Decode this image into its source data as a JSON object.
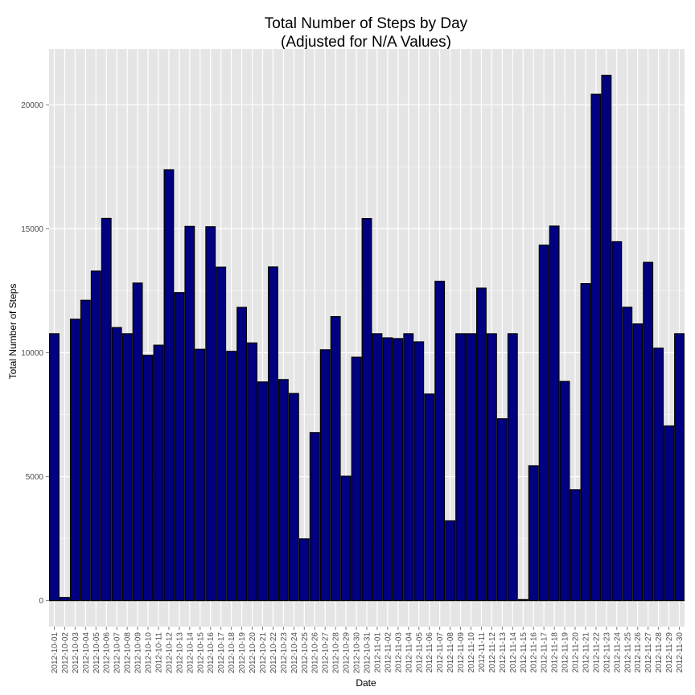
{
  "chart_data": {
    "type": "bar",
    "title": [
      "Total Number of Steps by Day",
      "(Adjusted for N/A Values)"
    ],
    "xlabel": "Date",
    "ylabel": "Total Number of Steps",
    "ylim": [
      -1050,
      22250
    ],
    "yticks": [
      0,
      5000,
      10000,
      15000,
      20000
    ],
    "grid": true,
    "bar_fill": "#000080",
    "bar_stroke": "#000000",
    "panel_background": "#e5e5e5",
    "grid_color": "#ffffff",
    "categories": [
      "2012-10-01",
      "2012-10-02",
      "2012-10-03",
      "2012-10-04",
      "2012-10-05",
      "2012-10-06",
      "2012-10-07",
      "2012-10-08",
      "2012-10-09",
      "2012-10-10",
      "2012-10-11",
      "2012-10-12",
      "2012-10-13",
      "2012-10-14",
      "2012-10-15",
      "2012-10-16",
      "2012-10-17",
      "2012-10-18",
      "2012-10-19",
      "2012-10-20",
      "2012-10-21",
      "2012-10-22",
      "2012-10-23",
      "2012-10-24",
      "2012-10-25",
      "2012-10-26",
      "2012-10-27",
      "2012-10-28",
      "2012-10-29",
      "2012-10-30",
      "2012-10-31",
      "2012-11-01",
      "2012-11-02",
      "2012-11-03",
      "2012-11-04",
      "2012-11-05",
      "2012-11-06",
      "2012-11-07",
      "2012-11-08",
      "2012-11-09",
      "2012-11-10",
      "2012-11-11",
      "2012-11-12",
      "2012-11-13",
      "2012-11-14",
      "2012-11-15",
      "2012-11-16",
      "2012-11-17",
      "2012-11-18",
      "2012-11-19",
      "2012-11-20",
      "2012-11-21",
      "2012-11-22",
      "2012-11-23",
      "2012-11-24",
      "2012-11-25",
      "2012-11-26",
      "2012-11-27",
      "2012-11-28",
      "2012-11-29",
      "2012-11-30"
    ],
    "values": [
      10766,
      126,
      11352,
      12116,
      13294,
      15420,
      11015,
      10766,
      12811,
      9900,
      10304,
      17382,
      12426,
      15098,
      10139,
      15084,
      13452,
      10056,
      11829,
      10395,
      8821,
      13460,
      8918,
      8355,
      2492,
      6778,
      10119,
      11458,
      5018,
      9819,
      15414,
      10766,
      10600,
      10571,
      10766,
      10439,
      8334,
      12883,
      3219,
      10766,
      10766,
      12608,
      10765,
      7336,
      10766,
      41,
      5441,
      14339,
      15110,
      8841,
      4472,
      12787,
      20427,
      21194,
      14478,
      11834,
      11162,
      13646,
      10183,
      7047,
      10766
    ]
  }
}
